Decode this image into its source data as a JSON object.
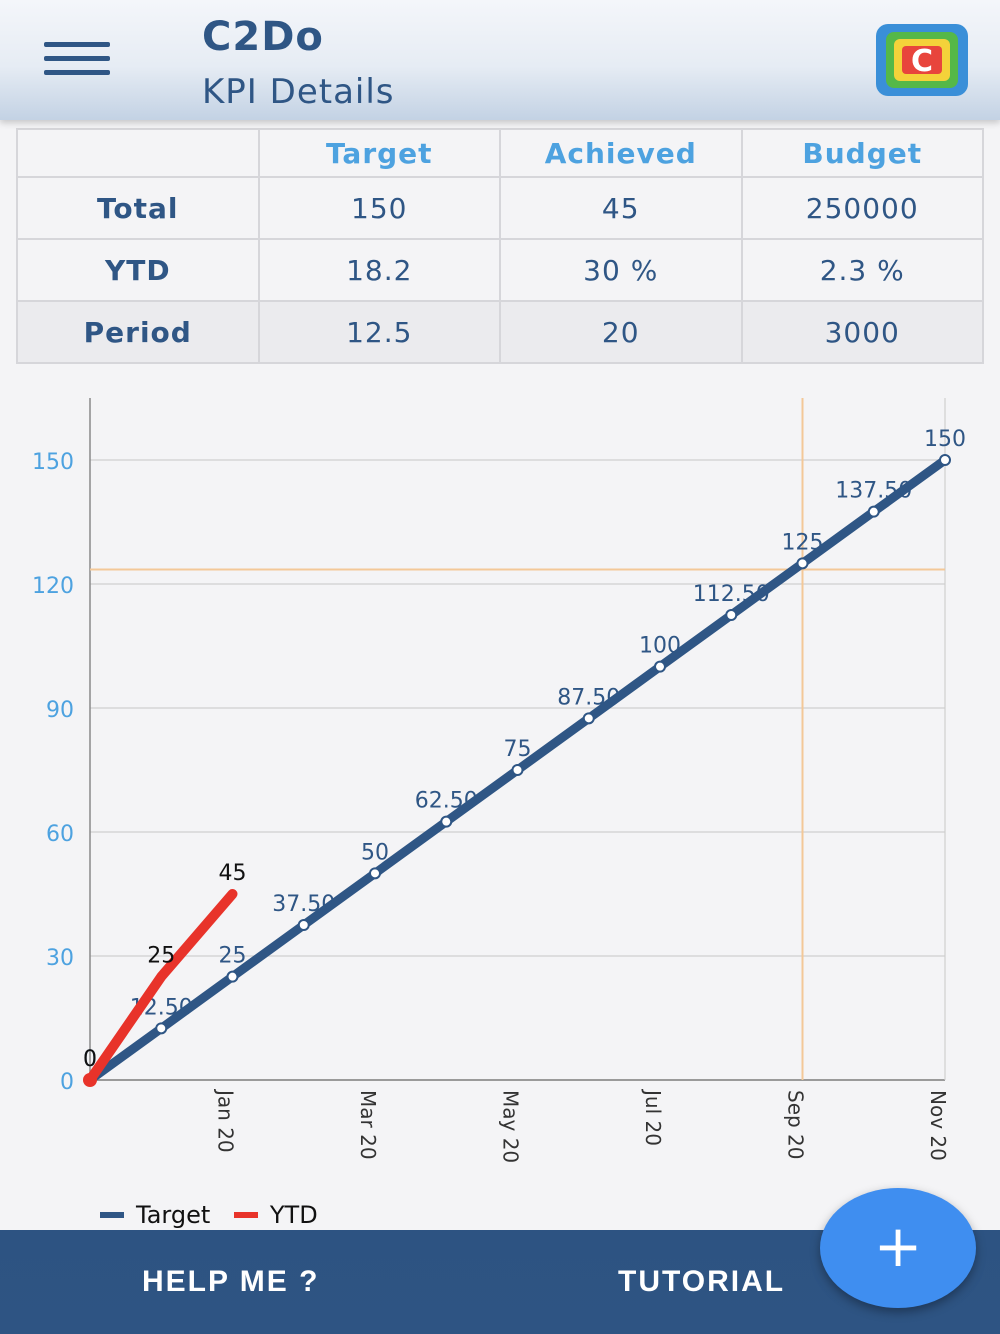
{
  "header": {
    "app_title": "C2Do",
    "page_subtitle": "KPI Details"
  },
  "kpi_table": {
    "columns": [
      "",
      "Target",
      "Achieved",
      "Budget"
    ],
    "rows": [
      {
        "label": "Total",
        "values": [
          "150",
          "45",
          "250000"
        ]
      },
      {
        "label": "YTD",
        "values": [
          "18.2",
          "30 %",
          "2.3 %"
        ]
      },
      {
        "label": "Period",
        "values": [
          "12.5",
          "20",
          "3000"
        ]
      }
    ]
  },
  "colors": {
    "brand": "#2f5685",
    "header_accent": "#4da2e0",
    "target_line": "#2f5685",
    "ytd_line": "#e8332a",
    "fab": "#3f8ef0",
    "guide_line": "#f3c898"
  },
  "chart_data": {
    "type": "line",
    "x_tick_labels": [
      "Jan 20",
      "Mar 20",
      "May 20",
      "Jul 20",
      "Sep 20",
      "Nov 20"
    ],
    "y_ticks": [
      0,
      30,
      60,
      90,
      120,
      150
    ],
    "ylim": [
      0,
      165
    ],
    "grid": true,
    "legend_position": "bottom-left",
    "reference_lines": {
      "horizontal_value": 123.5,
      "vertical_index": 10
    },
    "series": [
      {
        "name": "Target",
        "color": "#2f5685",
        "values": [
          0,
          12.5,
          25,
          37.5,
          50,
          62.5,
          75,
          87.5,
          100,
          112.5,
          125,
          137.5,
          150
        ],
        "labels": [
          "0",
          "12.50",
          "25",
          "37.50",
          "50",
          "62.50",
          "75",
          "87.50",
          "100",
          "112.50",
          "125",
          "137.50",
          "150"
        ]
      },
      {
        "name": "YTD",
        "color": "#e8332a",
        "values": [
          0,
          25,
          45
        ],
        "labels": [
          "0",
          "25",
          "45"
        ]
      }
    ]
  },
  "footer": {
    "help_label": "HELP ME ?",
    "tutorial_label": "TUTORIAL",
    "fab_symbol": "+"
  }
}
